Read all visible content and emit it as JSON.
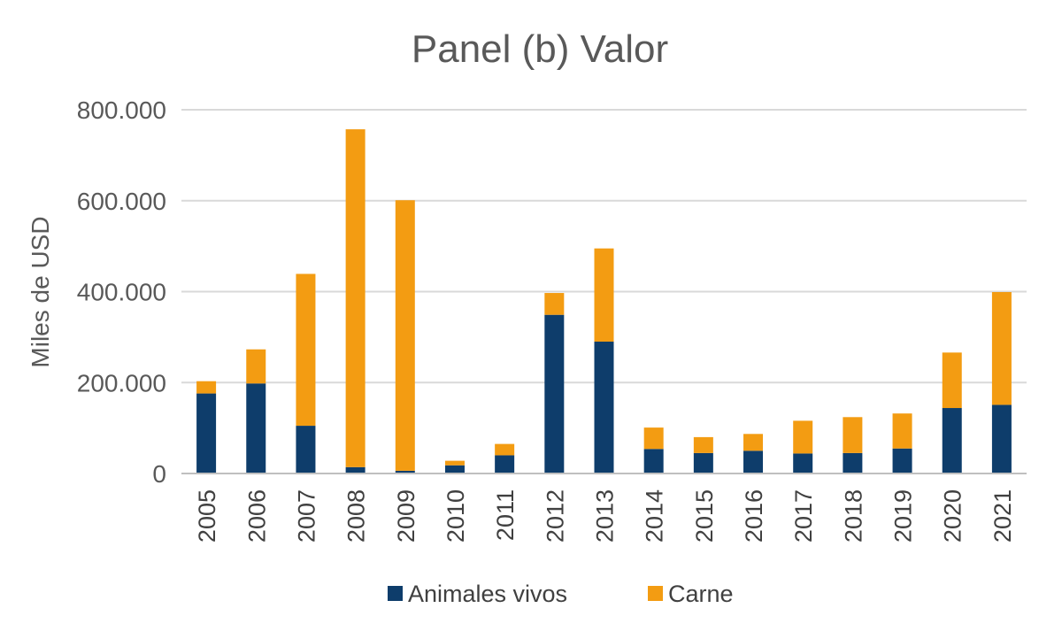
{
  "chart_data": {
    "type": "bar",
    "stacked": true,
    "title": "Panel (b) Valor",
    "xlabel": "",
    "ylabel": "Miles de USD",
    "ylim": [
      0,
      800000
    ],
    "yticks": [
      0,
      200000,
      400000,
      600000,
      800000
    ],
    "ytick_labels": [
      "0",
      "200.000",
      "400.000",
      "600.000",
      "800.000"
    ],
    "grid": true,
    "legend_position": "bottom",
    "categories": [
      "2005",
      "2006",
      "2007",
      "2008",
      "2009",
      "2010",
      "2011",
      "2012",
      "2013",
      "2014",
      "2015",
      "2016",
      "2017",
      "2018",
      "2019",
      "2020",
      "2021"
    ],
    "series": [
      {
        "name": "Animales vivos",
        "color": "#0e3d6b",
        "values": [
          176000,
          198000,
          105000,
          14000,
          6000,
          18000,
          40000,
          349000,
          290000,
          54000,
          45000,
          50000,
          44000,
          45000,
          55000,
          144000,
          151000
        ]
      },
      {
        "name": "Carne",
        "color": "#f39c12",
        "values": [
          27000,
          75000,
          334000,
          743000,
          595000,
          10000,
          25000,
          48000,
          205000,
          47000,
          35000,
          37000,
          72000,
          79000,
          77000,
          122000,
          248000
        ]
      }
    ]
  }
}
